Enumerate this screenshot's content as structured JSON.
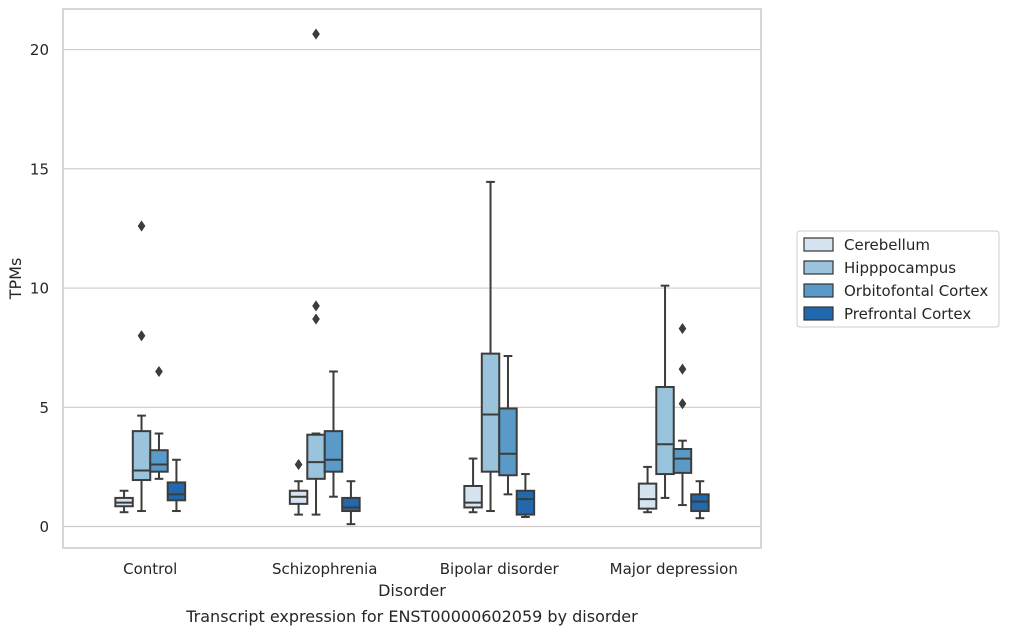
{
  "chart_data": {
    "type": "box",
    "title": "Transcript expression for ENST00000602059 by disorder",
    "xlabel": "Disorder",
    "ylabel": "TPMs",
    "ylim": [
      -0.9,
      21.7
    ],
    "yticks": [
      0,
      5,
      10,
      15,
      20
    ],
    "grid": "horizontal",
    "legend_position": "right",
    "categories": [
      "Control",
      "Schizophrenia",
      "Bipolar disorder",
      "Major depression"
    ],
    "series": [
      {
        "name": "Cerebellum",
        "color": "#d6e4f2",
        "boxes": [
          {
            "whislo": 0.6,
            "q1": 0.85,
            "med": 1.0,
            "q3": 1.2,
            "whishi": 1.5,
            "fliers": []
          },
          {
            "whislo": 0.5,
            "q1": 0.95,
            "med": 1.25,
            "q3": 1.5,
            "whishi": 1.9,
            "fliers": [
              2.6
            ]
          },
          {
            "whislo": 0.6,
            "q1": 0.8,
            "med": 1.0,
            "q3": 1.7,
            "whishi": 2.85,
            "fliers": []
          },
          {
            "whislo": 0.6,
            "q1": 0.75,
            "med": 1.15,
            "q3": 1.8,
            "whishi": 2.5,
            "fliers": []
          }
        ]
      },
      {
        "name": "Hipppocampus",
        "color": "#9ac3dc",
        "boxes": [
          {
            "whislo": 0.65,
            "q1": 1.95,
            "med": 2.35,
            "q3": 4.0,
            "whishi": 4.65,
            "fliers": [
              8.0,
              12.6
            ]
          },
          {
            "whislo": 0.5,
            "q1": 2.0,
            "med": 2.7,
            "q3": 3.85,
            "whishi": 3.9,
            "fliers": [
              8.7,
              9.25,
              20.65
            ]
          },
          {
            "whislo": 0.65,
            "q1": 2.3,
            "med": 4.7,
            "q3": 7.25,
            "whishi": 14.45,
            "fliers": []
          },
          {
            "whislo": 1.2,
            "q1": 2.2,
            "med": 3.45,
            "q3": 5.85,
            "whishi": 10.1,
            "fliers": []
          }
        ]
      },
      {
        "name": "Orbitofontal Cortex",
        "color": "#5a9ac8",
        "boxes": [
          {
            "whislo": 2.0,
            "q1": 2.3,
            "med": 2.6,
            "q3": 3.2,
            "whishi": 3.9,
            "fliers": [
              6.5
            ]
          },
          {
            "whislo": 1.25,
            "q1": 2.3,
            "med": 2.8,
            "q3": 4.0,
            "whishi": 6.5,
            "fliers": []
          },
          {
            "whislo": 1.35,
            "q1": 2.15,
            "med": 3.05,
            "q3": 4.95,
            "whishi": 7.15,
            "fliers": []
          },
          {
            "whislo": 0.9,
            "q1": 2.25,
            "med": 2.85,
            "q3": 3.25,
            "whishi": 3.6,
            "fliers": [
              5.15,
              6.6,
              8.3
            ]
          }
        ]
      },
      {
        "name": "Prefrontal Cortex",
        "color": "#2268ac",
        "boxes": [
          {
            "whislo": 0.65,
            "q1": 1.1,
            "med": 1.35,
            "q3": 1.85,
            "whishi": 2.8,
            "fliers": []
          },
          {
            "whislo": 0.1,
            "q1": 0.65,
            "med": 0.8,
            "q3": 1.2,
            "whishi": 1.9,
            "fliers": []
          },
          {
            "whislo": 0.4,
            "q1": 0.5,
            "med": 1.15,
            "q3": 1.5,
            "whishi": 2.2,
            "fliers": []
          },
          {
            "whislo": 0.35,
            "q1": 0.65,
            "med": 1.05,
            "q3": 1.35,
            "whishi": 1.9,
            "fliers": []
          }
        ]
      }
    ]
  }
}
